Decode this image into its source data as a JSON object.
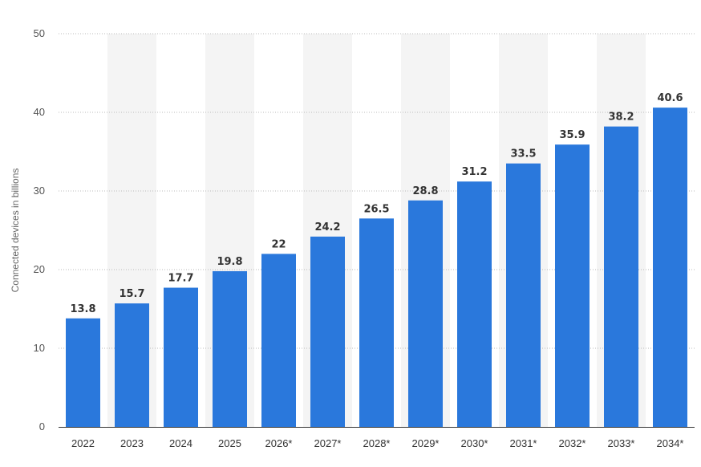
{
  "chart_data": {
    "type": "bar",
    "categories": [
      "2022",
      "2023",
      "2024",
      "2025",
      "2026*",
      "2027*",
      "2028*",
      "2029*",
      "2030*",
      "2031*",
      "2032*",
      "2033*",
      "2034*"
    ],
    "values": [
      13.8,
      15.7,
      17.7,
      19.8,
      22,
      24.2,
      26.5,
      28.8,
      31.2,
      33.5,
      35.9,
      38.2,
      40.6
    ],
    "value_labels": [
      "13.8",
      "15.7",
      "17.7",
      "19.8",
      "22",
      "24.2",
      "26.5",
      "28.8",
      "31.2",
      "33.5",
      "35.9",
      "38.2",
      "40.6"
    ],
    "title": "",
    "xlabel": "",
    "ylabel": "Connected devices in billions",
    "ylim": [
      0,
      50
    ],
    "yticks": [
      "0",
      "10",
      "20",
      "30",
      "40",
      "50"
    ],
    "grid": "horizontal dotted",
    "bar_color": "#2a78dc",
    "band_color": "#f4f4f4",
    "grid_color": "#bbbbbb"
  }
}
